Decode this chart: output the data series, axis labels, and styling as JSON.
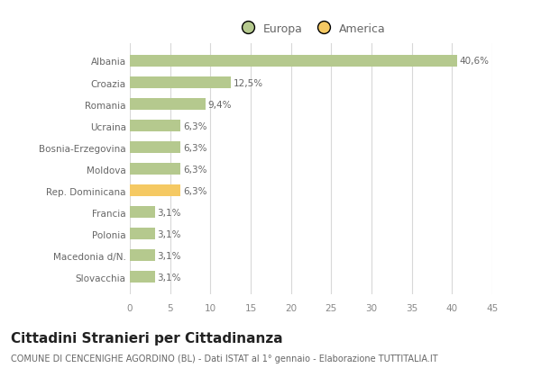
{
  "categories": [
    "Albania",
    "Croazia",
    "Romania",
    "Ucraina",
    "Bosnia-Erzegovina",
    "Moldova",
    "Rep. Dominicana",
    "Francia",
    "Polonia",
    "Macedonia d/N.",
    "Slovacchia"
  ],
  "values": [
    40.6,
    12.5,
    9.4,
    6.3,
    6.3,
    6.3,
    6.3,
    3.1,
    3.1,
    3.1,
    3.1
  ],
  "labels": [
    "40,6%",
    "12,5%",
    "9,4%",
    "6,3%",
    "6,3%",
    "6,3%",
    "6,3%",
    "3,1%",
    "3,1%",
    "3,1%",
    "3,1%"
  ],
  "colors": [
    "#b5c98e",
    "#b5c98e",
    "#b5c98e",
    "#b5c98e",
    "#b5c98e",
    "#b5c98e",
    "#f5c963",
    "#b5c98e",
    "#b5c98e",
    "#b5c98e",
    "#b5c98e"
  ],
  "legend_europa_color": "#b5c98e",
  "legend_america_color": "#f5c963",
  "xlim": [
    0,
    45
  ],
  "xticks": [
    0,
    5,
    10,
    15,
    20,
    25,
    30,
    35,
    40,
    45
  ],
  "title": "Cittadini Stranieri per Cittadinanza",
  "subtitle": "COMUNE DI CENCENIGHE AGORDINO (BL) - Dati ISTAT al 1° gennaio - Elaborazione TUTTITALIA.IT",
  "background_color": "#ffffff",
  "grid_color": "#d8d8d8",
  "bar_height": 0.55,
  "label_fontsize": 7.5,
  "tick_fontsize": 7.5,
  "title_fontsize": 11,
  "subtitle_fontsize": 7
}
